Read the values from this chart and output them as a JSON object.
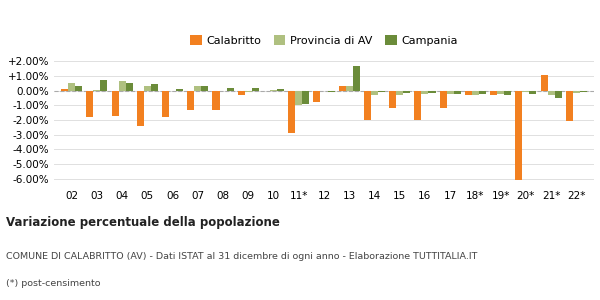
{
  "categories": [
    "02",
    "03",
    "04",
    "05",
    "06",
    "07",
    "08",
    "09",
    "10",
    "11*",
    "12",
    "13",
    "14",
    "15",
    "16",
    "17",
    "18*",
    "19*",
    "20*",
    "21*",
    "22*"
  ],
  "calabritto": [
    0.1,
    -1.8,
    -1.7,
    -2.4,
    -1.8,
    -1.3,
    -1.3,
    -0.3,
    -0.05,
    -2.9,
    -0.8,
    0.35,
    -2.0,
    -1.2,
    -2.0,
    -1.2,
    -0.3,
    -0.3,
    -6.1,
    1.05,
    -2.1
  ],
  "provincia_av": [
    0.55,
    0.05,
    0.65,
    0.35,
    -0.05,
    0.3,
    -0.05,
    -0.1,
    0.05,
    -1.0,
    -0.05,
    0.3,
    -0.3,
    -0.3,
    -0.2,
    -0.2,
    -0.3,
    -0.2,
    -0.1,
    -0.3,
    -0.15
  ],
  "campania": [
    0.3,
    0.75,
    0.55,
    0.45,
    0.1,
    0.35,
    0.2,
    0.15,
    0.1,
    -0.9,
    -0.1,
    1.7,
    -0.1,
    -0.15,
    -0.15,
    -0.2,
    -0.25,
    -0.3,
    -0.2,
    -0.5,
    -0.1
  ],
  "color_calabritto": "#f28020",
  "color_provincia": "#afc080",
  "color_campania": "#6b8c3a",
  "title_bold": "Variazione percentuale della popolazione",
  "subtitle": "COMUNE DI CALABRITTO (AV) - Dati ISTAT al 31 dicembre di ogni anno - Elaborazione TUTTITALIA.IT",
  "footnote": "(*) post-censimento",
  "ylim": [
    -6.5,
    2.5
  ],
  "yticks": [
    -6.0,
    -5.0,
    -4.0,
    -3.0,
    -2.0,
    -1.0,
    0.0,
    1.0,
    2.0
  ],
  "ytick_labels": [
    "-6.00%",
    "-5.00%",
    "-4.00%",
    "-3.00%",
    "-2.00%",
    "-1.00%",
    "0.00%",
    "+1.00%",
    "+2.00%"
  ],
  "bg_color": "#ffffff",
  "grid_color": "#e0e0e0"
}
